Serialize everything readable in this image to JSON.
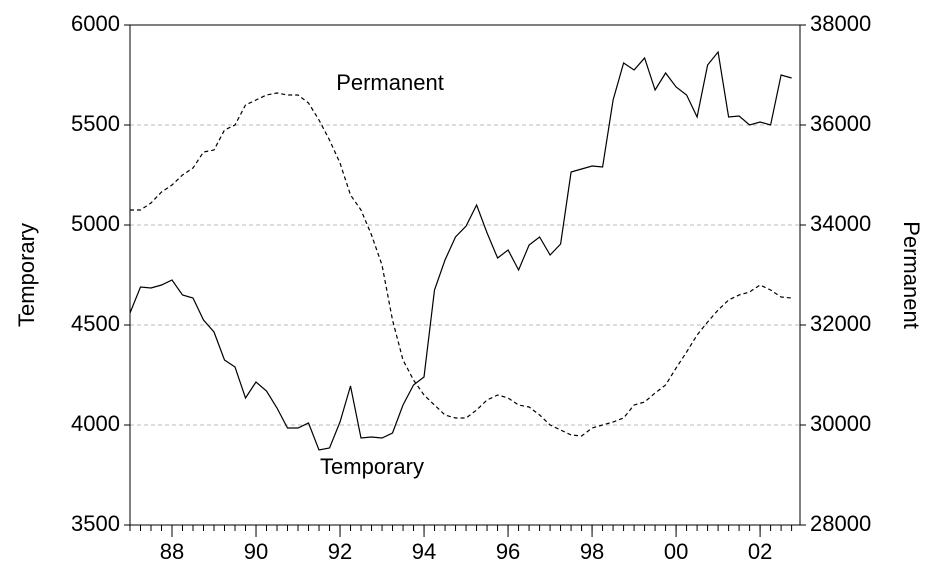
{
  "chart_data": {
    "type": "line",
    "x": [
      1987,
      1987.25,
      1987.5,
      1987.75,
      1988,
      1988.25,
      1988.5,
      1988.75,
      1989,
      1989.25,
      1989.5,
      1989.75,
      1990,
      1990.25,
      1990.5,
      1990.75,
      1991,
      1991.25,
      1991.5,
      1991.75,
      1992,
      1992.25,
      1992.5,
      1992.75,
      1993,
      1993.25,
      1993.5,
      1993.75,
      1994,
      1994.25,
      1994.5,
      1994.75,
      1995,
      1995.25,
      1995.5,
      1995.75,
      1996,
      1996.25,
      1996.5,
      1996.75,
      1997,
      1997.25,
      1997.5,
      1997.75,
      1998,
      1998.25,
      1998.5,
      1998.75,
      1999,
      1999.25,
      1999.5,
      1999.75,
      2000,
      2000.25,
      2000.5,
      2000.75,
      2001,
      2001.25,
      2001.5,
      2001.75,
      2002,
      2002.25,
      2002.5,
      2002.75
    ],
    "series": [
      {
        "name": "Temporary",
        "color": "#000000",
        "line_style": "solid",
        "axis": "y",
        "values": [
          4560,
          4690,
          4685,
          4700,
          4725,
          4650,
          4635,
          4525,
          4465,
          4325,
          4290,
          4135,
          4215,
          4170,
          4085,
          3985,
          3985,
          4010,
          3875,
          3885,
          4015,
          4195,
          3935,
          3940,
          3935,
          3960,
          4100,
          4200,
          4240,
          4675,
          4825,
          4940,
          4995,
          5100,
          4960,
          4835,
          4875,
          4775,
          4900,
          4940,
          4850,
          4905,
          5265,
          5280,
          5295,
          5290,
          5625,
          5810,
          5775,
          5835,
          5675,
          5760,
          5690,
          5650,
          5540,
          5800,
          5865,
          5540,
          5545,
          5500,
          5515,
          5500,
          5750,
          5735
        ]
      },
      {
        "name": "Permanent",
        "color": "#000000",
        "line_style": "dashed",
        "axis": "y2",
        "values": [
          34300,
          34300,
          34440,
          34660,
          34800,
          35000,
          35140,
          35460,
          35500,
          35900,
          36000,
          36400,
          36500,
          36600,
          36640,
          36600,
          36600,
          36440,
          36100,
          35700,
          35240,
          34600,
          34300,
          33800,
          33200,
          32100,
          31300,
          30900,
          30600,
          30400,
          30200,
          30140,
          30140,
          30300,
          30500,
          30600,
          30540,
          30400,
          30360,
          30200,
          30000,
          29900,
          29800,
          29780,
          29940,
          30000,
          30060,
          30140,
          30400,
          30460,
          30640,
          30800,
          31140,
          31460,
          31800,
          32060,
          32300,
          32500,
          32600,
          32660,
          32800,
          32700,
          32560,
          32540
        ]
      }
    ],
    "y_label": "Temporary",
    "y2_label": "Permanent",
    "annotations": [
      "Permanent",
      "Temporary"
    ],
    "xlim": [
      1987,
      2002.95
    ],
    "xticks": [
      {
        "value": 1988,
        "label": "88"
      },
      {
        "value": 1990,
        "label": "90"
      },
      {
        "value": 1992,
        "label": "92"
      },
      {
        "value": 1994,
        "label": "94"
      },
      {
        "value": 1996,
        "label": "96"
      },
      {
        "value": 1998,
        "label": "98"
      },
      {
        "value": 2000,
        "label": "00"
      },
      {
        "value": 2002,
        "label": "02"
      }
    ],
    "ylim": [
      3500,
      6000
    ],
    "yticks": [
      3500,
      4000,
      4500,
      5000,
      5500,
      6000
    ],
    "y2lim": [
      28000,
      38000
    ],
    "y2ticks": [
      28000,
      30000,
      32000,
      34000,
      36000,
      38000
    ],
    "grid": true
  }
}
